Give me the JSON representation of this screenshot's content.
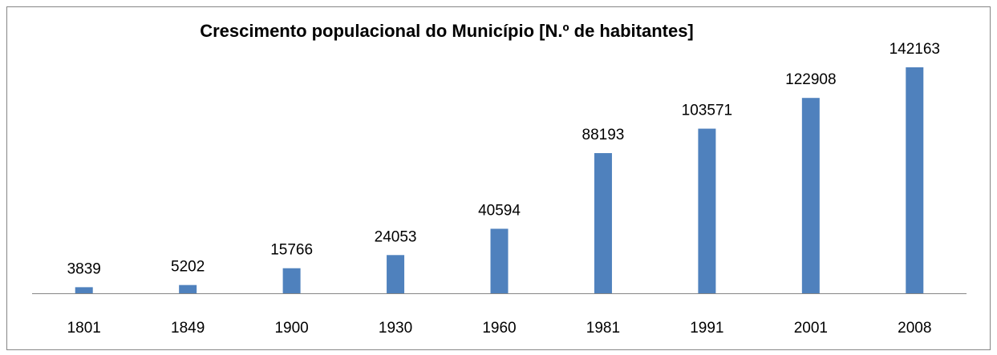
{
  "chart_data": {
    "type": "bar",
    "title": "Crescimento populacional do Município [N.º de habitantes]",
    "categories": [
      "1801",
      "1849",
      "1900",
      "1930",
      "1960",
      "1981",
      "1991",
      "2001",
      "2008"
    ],
    "values": [
      3839,
      5202,
      15766,
      24053,
      40594,
      88193,
      103571,
      122908,
      142163
    ],
    "color": "#4f81bd"
  }
}
